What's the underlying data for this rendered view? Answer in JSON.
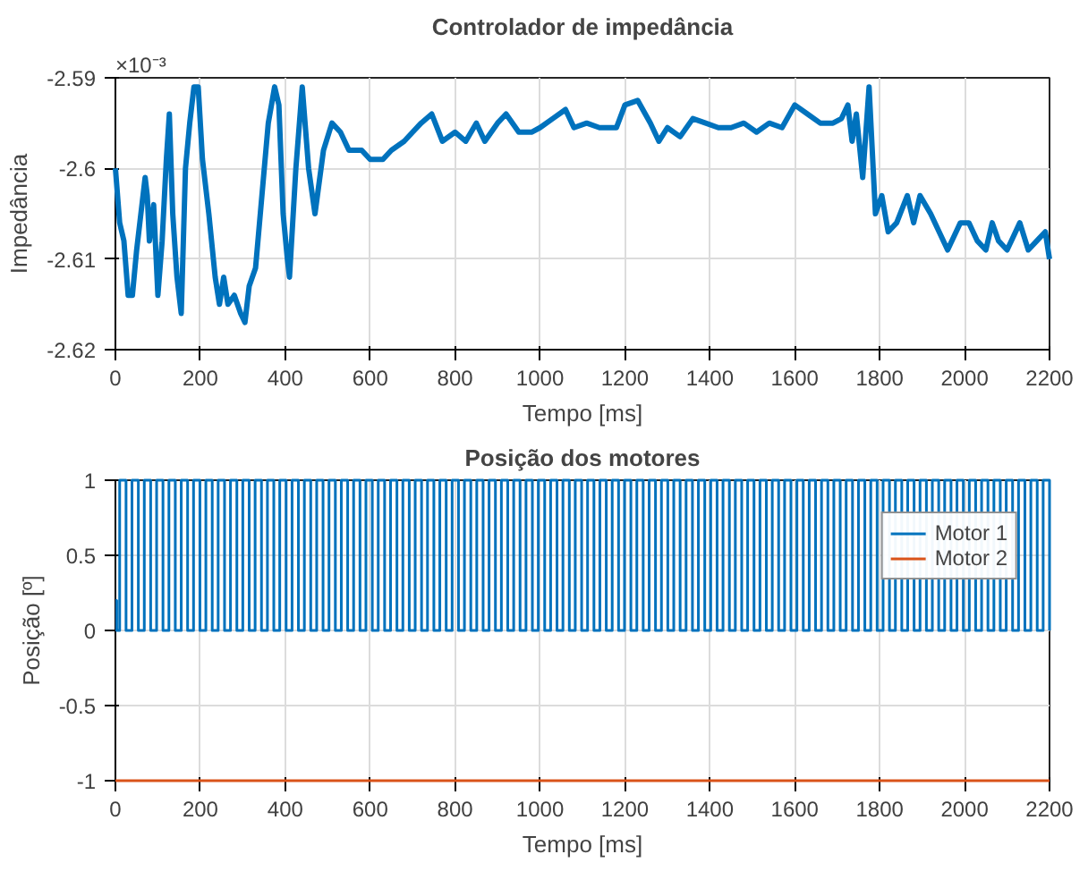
{
  "chart_data": [
    {
      "type": "line",
      "title": "Controlador de impedância",
      "xlabel": "Tempo [ms]",
      "ylabel": "Impedância",
      "annotations": [
        "×10⁻³"
      ],
      "xlim": [
        0,
        2200
      ],
      "xticks": [
        0,
        200,
        400,
        600,
        800,
        1000,
        1200,
        1400,
        1600,
        1800,
        2000,
        2200
      ],
      "ylim": [
        -2.62,
        -2.59
      ],
      "yticks": [
        -2.62,
        -2.61,
        -2.6,
        -2.59
      ],
      "grid": true,
      "line_style": "solid",
      "series": [
        {
          "color": "#0072bd",
          "x": [
            0,
            10,
            20,
            30,
            40,
            50,
            60,
            70,
            75,
            80,
            90,
            100,
            110,
            120,
            127,
            135,
            145,
            155,
            165,
            175,
            185,
            195,
            205,
            220,
            235,
            245,
            255,
            265,
            280,
            295,
            305,
            315,
            330,
            345,
            360,
            375,
            385,
            395,
            405,
            410,
            425,
            440,
            455,
            470,
            490,
            510,
            530,
            550,
            580,
            600,
            630,
            650,
            680,
            700,
            720,
            745,
            770,
            800,
            825,
            850,
            870,
            900,
            920,
            950,
            980,
            1000,
            1030,
            1060,
            1080,
            1110,
            1140,
            1180,
            1200,
            1230,
            1260,
            1280,
            1300,
            1330,
            1360,
            1390,
            1420,
            1450,
            1480,
            1510,
            1540,
            1570,
            1600,
            1630,
            1660,
            1690,
            1710,
            1725,
            1735,
            1745,
            1760,
            1775,
            1790,
            1805,
            1820,
            1840,
            1865,
            1880,
            1895,
            1920,
            1940,
            1960,
            1990,
            2010,
            2030,
            2050,
            2065,
            2080,
            2100,
            2110,
            2130,
            2150,
            2170,
            2190,
            2200
          ],
          "values": [
            -2.6,
            -2.606,
            -2.608,
            -2.614,
            -2.614,
            -2.609,
            -2.605,
            -2.601,
            -2.603,
            -2.608,
            -2.604,
            -2.614,
            -2.608,
            -2.599,
            -2.594,
            -2.605,
            -2.612,
            -2.616,
            -2.6,
            -2.595,
            -2.591,
            -2.591,
            -2.599,
            -2.605,
            -2.612,
            -2.615,
            -2.612,
            -2.615,
            -2.614,
            -2.616,
            -2.617,
            -2.613,
            -2.611,
            -2.603,
            -2.595,
            -2.591,
            -2.593,
            -2.605,
            -2.61,
            -2.612,
            -2.6,
            -2.591,
            -2.6,
            -2.605,
            -2.598,
            -2.595,
            -2.596,
            -2.598,
            -2.598,
            -2.599,
            -2.599,
            -2.598,
            -2.597,
            -2.596,
            -2.595,
            -2.594,
            -2.597,
            -2.596,
            -2.597,
            -2.595,
            -2.597,
            -2.595,
            -2.594,
            -2.596,
            -2.596,
            -2.5955,
            -2.5945,
            -2.5935,
            -2.5955,
            -2.595,
            -2.5955,
            -2.5955,
            -2.593,
            -2.5925,
            -2.595,
            -2.597,
            -2.5955,
            -2.5965,
            -2.5945,
            -2.595,
            -2.5955,
            -2.5955,
            -2.595,
            -2.596,
            -2.595,
            -2.5955,
            -2.593,
            -2.594,
            -2.595,
            -2.595,
            -2.5945,
            -2.593,
            -2.597,
            -2.594,
            -2.601,
            -2.591,
            -2.605,
            -2.603,
            -2.607,
            -2.606,
            -2.603,
            -2.606,
            -2.603,
            -2.605,
            -2.607,
            -2.609,
            -2.606,
            -2.606,
            -2.608,
            -2.609,
            -2.606,
            -2.608,
            -2.609,
            -2.608,
            -2.606,
            -2.609,
            -2.608,
            -2.607,
            -2.61
          ]
        }
      ]
    },
    {
      "type": "line",
      "title": "Posição dos motores",
      "xlabel": "Tempo [ms]",
      "ylabel": "Posição [º]",
      "xlim": [
        0,
        2200
      ],
      "xticks": [
        0,
        200,
        400,
        600,
        800,
        1000,
        1200,
        1400,
        1600,
        1800,
        2000,
        2200
      ],
      "ylim": [
        -1,
        1
      ],
      "yticks": [
        -1,
        -0.5,
        0,
        0.5,
        1
      ],
      "grid": true,
      "legend": "top right",
      "line_style": "solid",
      "series": [
        {
          "name": "Motor 1",
          "color": "#0072bd",
          "type": "step",
          "x": [
            0,
            3,
            10,
            25,
            39,
            54,
            68,
            83,
            97,
            112,
            126,
            141,
            155,
            170,
            184,
            199,
            213,
            228,
            242,
            257,
            271,
            286,
            300,
            315,
            329,
            344,
            358,
            373,
            387,
            402,
            416,
            431,
            445,
            460,
            474,
            489,
            503,
            518,
            532,
            547,
            561,
            576,
            590,
            605,
            619,
            634,
            648,
            663,
            677,
            692,
            706,
            721,
            735,
            750,
            764,
            779,
            793,
            808,
            822,
            837,
            851,
            866,
            880,
            895,
            909,
            924,
            938,
            953,
            967,
            982,
            996,
            1011,
            1025,
            1040,
            1054,
            1069,
            1083,
            1098,
            1112,
            1127,
            1141,
            1156,
            1170,
            1185,
            1199,
            1214,
            1228,
            1243,
            1257,
            1272,
            1286,
            1301,
            1315,
            1330,
            1344,
            1359,
            1373,
            1388,
            1402,
            1417,
            1431,
            1446,
            1460,
            1475,
            1489,
            1504,
            1518,
            1533,
            1547,
            1562,
            1576,
            1591,
            1605,
            1620,
            1634,
            1649,
            1663,
            1678,
            1692,
            1707,
            1721,
            1736,
            1750,
            1765,
            1779,
            1794,
            1808,
            1823,
            1837,
            1852,
            1866,
            1881,
            1895,
            1910,
            1924,
            1939,
            1953,
            1968,
            1982,
            1997,
            2011,
            2026,
            2040,
            2055,
            2069,
            2084,
            2098,
            2113,
            2127,
            2142,
            2156,
            2171,
            2185,
            2200
          ],
          "values": [
            0.2,
            0,
            1,
            0,
            1,
            0,
            1,
            0,
            1,
            0,
            1,
            0,
            1,
            0,
            1,
            0,
            1,
            0,
            1,
            0,
            1,
            0,
            1,
            0,
            1,
            0,
            1,
            0,
            1,
            0,
            1,
            0,
            1,
            0,
            1,
            0,
            1,
            0,
            1,
            0,
            1,
            0,
            1,
            0,
            1,
            0,
            1,
            0,
            1,
            0,
            1,
            0,
            1,
            0,
            1,
            0,
            1,
            0,
            1,
            0,
            1,
            0,
            1,
            0,
            1,
            0,
            1,
            0,
            1,
            0,
            1,
            0,
            1,
            0,
            1,
            0,
            1,
            0,
            1,
            0,
            1,
            0,
            1,
            0,
            1,
            0,
            1,
            0,
            1,
            0,
            1,
            0,
            1,
            0,
            1,
            0,
            1,
            0,
            1,
            0,
            1,
            0,
            1,
            0,
            1,
            0,
            1,
            0,
            1,
            0,
            1,
            0,
            1,
            0,
            1,
            0,
            1,
            0,
            1,
            0,
            1,
            0,
            1,
            0,
            1,
            0,
            1,
            0,
            1,
            0,
            1,
            0,
            1,
            0,
            1,
            0,
            1,
            0,
            1,
            0,
            1,
            0,
            1,
            0,
            1,
            0,
            1,
            0,
            1,
            0,
            1,
            0,
            1,
            0
          ]
        },
        {
          "name": "Motor 2",
          "color": "#d95319",
          "x": [
            0,
            2200
          ],
          "values": [
            -1,
            -1
          ]
        }
      ]
    }
  ]
}
